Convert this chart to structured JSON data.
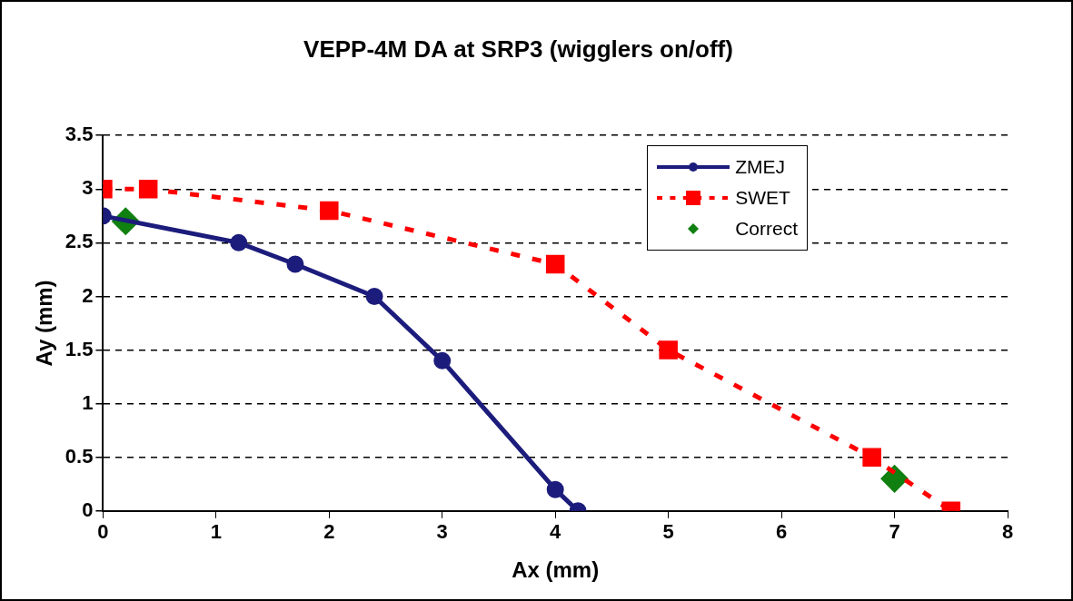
{
  "chart_data": {
    "type": "line",
    "title": "VEPP-4M DA at SRP3 (wigglers on/off)",
    "xlabel": "Ax (mm)",
    "ylabel": "Ay (mm)",
    "xlim": [
      0,
      8
    ],
    "xticks": [
      0,
      1,
      2,
      3,
      4,
      5,
      6,
      7,
      8
    ],
    "ylim": [
      0,
      3.5
    ],
    "yticks": [
      0,
      0.5,
      1,
      1.5,
      2,
      2.5,
      3,
      3.5
    ],
    "grid": "y",
    "legend": "top right",
    "series": [
      {
        "name": "ZMEJ",
        "color": "#1c1c7c",
        "marker": "circle",
        "line_style": "solid",
        "x": [
          0,
          1.2,
          1.7,
          2.4,
          3.0,
          4.0,
          4.2
        ],
        "values": [
          2.75,
          2.5,
          2.3,
          2.0,
          1.4,
          0.2,
          0.0
        ]
      },
      {
        "name": "SWET",
        "color": "#ff0000",
        "marker": "square",
        "line_style": "dashed",
        "x": [
          0,
          0.4,
          2.0,
          4.0,
          5.0,
          6.8,
          7.5
        ],
        "values": [
          3.0,
          3.0,
          2.8,
          2.3,
          1.5,
          0.5,
          0.0
        ]
      },
      {
        "name": "Correct",
        "type": "scatter",
        "color": "#108010",
        "marker": "diamond",
        "x": [
          0.2,
          7.0
        ],
        "values": [
          2.7,
          0.3
        ]
      }
    ]
  }
}
